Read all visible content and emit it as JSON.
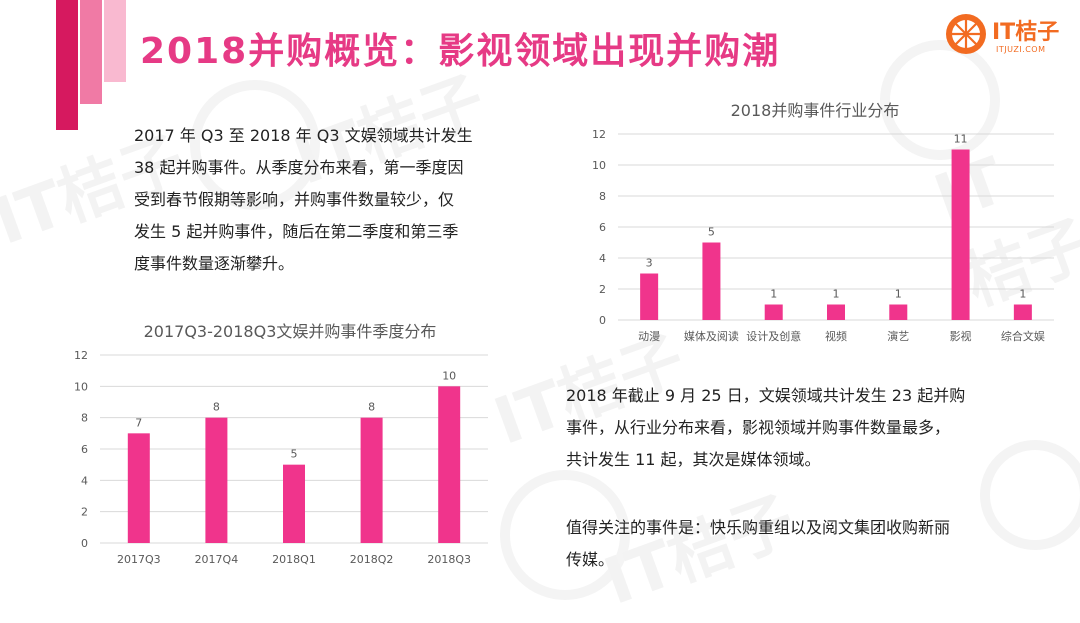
{
  "header": {
    "title": "2018并购概览：影视领域出现并购潮",
    "logo_text": "IT桔子",
    "logo_sub": "ITJUZI.COM",
    "watermark": "IT桔子"
  },
  "paragraphs": {
    "p1": "2017 年 Q3 至 2018 年 Q3 文娱领域共计发生\n38 起并购事件。从季度分布来看，第一季度因\n受到春节假期等影响，并购事件数量较少，仅\n发生 5 起并购事件，随后在第二季度和第三季\n度事件数量逐渐攀升。",
    "p2": "2018 年截止 9 月 25 日，文娱领域共计发生 23 起并购\n事件，从行业分布来看，影视领域并购事件数量最多，\n共计发生 11 起，其次是媒体领域。",
    "p3": "值得关注的事件是：快乐购重组以及阅文集团收购新丽\n传媒。"
  },
  "colors": {
    "accent": "#e63a85",
    "bar": "#f0348c",
    "grid": "#d9d9d9",
    "deco1": "#d6195f",
    "deco2": "#f07aa5",
    "deco3": "#f9b9d0"
  },
  "chart_data": [
    {
      "type": "bar",
      "title": "2017Q3-2018Q3文娱并购事件季度分布",
      "categories": [
        "2017Q3",
        "2017Q4",
        "2018Q1",
        "2018Q2",
        "2018Q3"
      ],
      "values": [
        7,
        8,
        5,
        8,
        10
      ],
      "ylim": [
        0,
        12
      ],
      "yticks": [
        0,
        2,
        4,
        6,
        8,
        10,
        12
      ],
      "grid": true,
      "data_labels": true
    },
    {
      "type": "bar",
      "title": "2018并购事件行业分布",
      "categories": [
        "动漫",
        "媒体及阅读",
        "设计及创意",
        "视频",
        "演艺",
        "影视",
        "综合文娱"
      ],
      "values": [
        3,
        5,
        1,
        1,
        1,
        11,
        1
      ],
      "ylim": [
        0,
        12
      ],
      "yticks": [
        0,
        2,
        4,
        6,
        8,
        10,
        12
      ],
      "grid": true,
      "data_labels": true
    }
  ]
}
